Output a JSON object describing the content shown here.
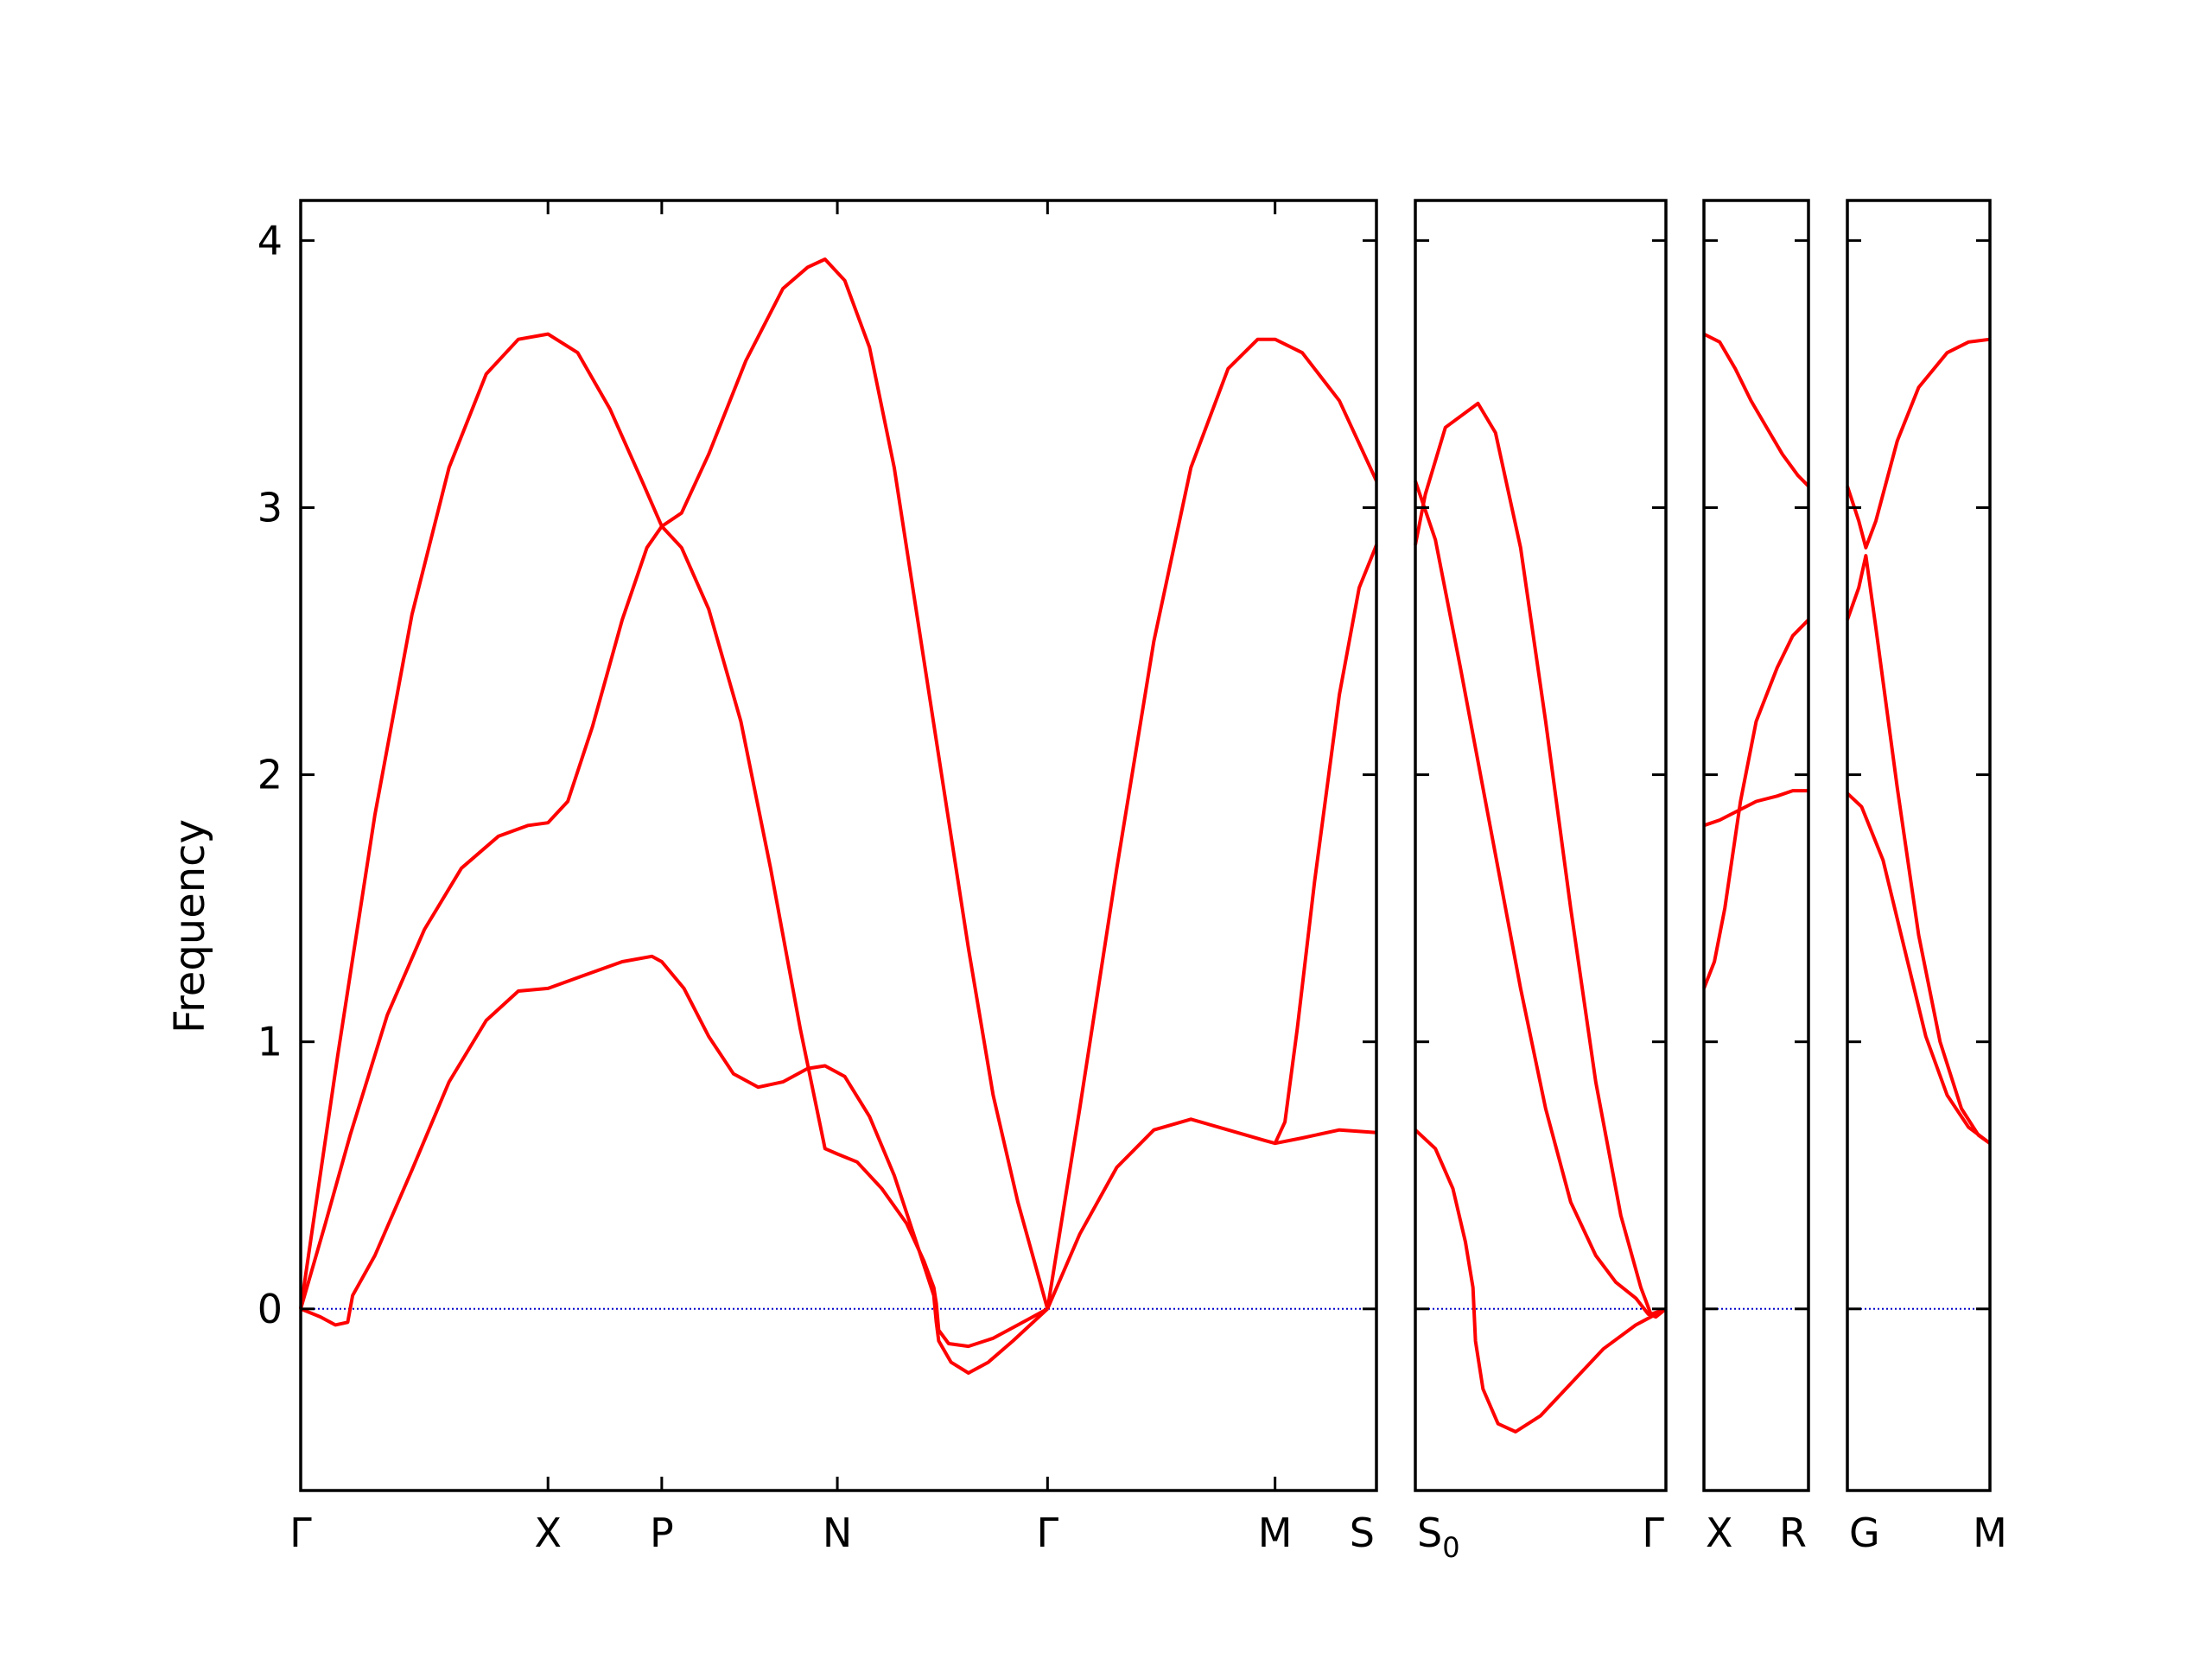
{
  "chart_data": {
    "type": "line",
    "ylabel": "Frequency",
    "yticks": [
      0,
      1,
      2,
      3,
      4
    ],
    "ylim": [
      -0.68,
      4.15
    ],
    "colors": {
      "bands": "#ff0000",
      "zero_line": "#0000cc",
      "frame": "#000000"
    },
    "zero_line_style": "dotted",
    "panels": [
      {
        "labels": [
          {
            "text": "Γ",
            "x": 0
          },
          {
            "text": "X",
            "x": 1.0
          },
          {
            "text": "P",
            "x": 1.46
          },
          {
            "text": "N",
            "x": 2.17
          },
          {
            "text": "Γ",
            "x": 3.02
          },
          {
            "text": "M",
            "x": 3.94
          },
          {
            "text": "S",
            "x": 4.35
          }
        ],
        "xlim": [
          0,
          4.35
        ],
        "series": [
          {
            "points": [
              [
                0,
                0
              ],
              [
                0.15,
                0.95
              ],
              [
                0.3,
                1.85
              ],
              [
                0.45,
                2.6
              ],
              [
                0.6,
                3.15
              ],
              [
                0.75,
                3.5
              ],
              [
                0.88,
                3.63
              ],
              [
                1.0,
                3.65
              ],
              [
                1.12,
                3.58
              ],
              [
                1.25,
                3.37
              ],
              [
                1.38,
                3.1
              ],
              [
                1.46,
                2.93
              ],
              [
                1.54,
                2.85
              ],
              [
                1.65,
                2.62
              ],
              [
                1.78,
                2.2
              ],
              [
                1.9,
                1.65
              ],
              [
                2.02,
                1.05
              ],
              [
                2.12,
                0.6
              ],
              [
                2.17,
                0.58
              ],
              [
                2.25,
                0.55
              ],
              [
                2.35,
                0.45
              ],
              [
                2.45,
                0.32
              ],
              [
                2.52,
                0.18
              ],
              [
                2.56,
                0.08
              ],
              [
                2.57,
                0.02
              ],
              [
                2.58,
                -0.08
              ],
              [
                2.62,
                -0.13
              ],
              [
                2.7,
                -0.14
              ],
              [
                2.8,
                -0.11
              ],
              [
                2.9,
                -0.06
              ],
              [
                3.02,
                0
              ]
            ]
          },
          {
            "points": [
              [
                0,
                0
              ],
              [
                0.1,
                0.32
              ],
              [
                0.2,
                0.65
              ],
              [
                0.35,
                1.1
              ],
              [
                0.5,
                1.42
              ],
              [
                0.65,
                1.65
              ],
              [
                0.8,
                1.77
              ],
              [
                0.92,
                1.81
              ],
              [
                1.0,
                1.82
              ],
              [
                1.08,
                1.9
              ],
              [
                1.18,
                2.18
              ],
              [
                1.3,
                2.58
              ],
              [
                1.4,
                2.85
              ],
              [
                1.46,
                2.93
              ],
              [
                1.54,
                2.98
              ],
              [
                1.65,
                3.2
              ],
              [
                1.8,
                3.55
              ],
              [
                1.95,
                3.82
              ],
              [
                2.05,
                3.9
              ],
              [
                2.12,
                3.93
              ],
              [
                2.2,
                3.85
              ],
              [
                2.3,
                3.6
              ],
              [
                2.4,
                3.15
              ],
              [
                2.5,
                2.55
              ],
              [
                2.6,
                1.95
              ],
              [
                2.7,
                1.35
              ],
              [
                2.8,
                0.8
              ],
              [
                2.9,
                0.4
              ],
              [
                3.02,
                0
              ]
            ]
          },
          {
            "points": [
              [
                0,
                0
              ],
              [
                0.08,
                -0.03
              ],
              [
                0.14,
                -0.06
              ],
              [
                0.19,
                -0.05
              ],
              [
                0.21,
                0.05
              ],
              [
                0.3,
                0.2
              ],
              [
                0.45,
                0.52
              ],
              [
                0.6,
                0.85
              ],
              [
                0.75,
                1.08
              ],
              [
                0.88,
                1.19
              ],
              [
                1.0,
                1.2
              ],
              [
                1.15,
                1.25
              ],
              [
                1.3,
                1.3
              ],
              [
                1.42,
                1.32
              ],
              [
                1.46,
                1.3
              ],
              [
                1.55,
                1.2
              ],
              [
                1.65,
                1.02
              ],
              [
                1.75,
                0.88
              ],
              [
                1.85,
                0.83
              ],
              [
                1.95,
                0.85
              ],
              [
                2.05,
                0.9
              ],
              [
                2.12,
                0.91
              ],
              [
                2.2,
                0.87
              ],
              [
                2.3,
                0.72
              ],
              [
                2.4,
                0.5
              ],
              [
                2.5,
                0.22
              ],
              [
                2.56,
                0.05
              ],
              [
                2.57,
                -0.05
              ],
              [
                2.58,
                -0.12
              ],
              [
                2.63,
                -0.2
              ],
              [
                2.7,
                -0.24
              ],
              [
                2.78,
                -0.2
              ],
              [
                2.88,
                -0.12
              ],
              [
                3.02,
                0
              ]
            ]
          },
          {
            "points": [
              [
                3.02,
                0
              ],
              [
                3.15,
                0.28
              ],
              [
                3.3,
                0.53
              ],
              [
                3.45,
                0.67
              ],
              [
                3.6,
                0.71
              ],
              [
                3.75,
                0.67
              ],
              [
                3.9,
                0.63
              ],
              [
                3.94,
                0.62
              ],
              [
                4.05,
                0.64
              ],
              [
                4.2,
                0.67
              ],
              [
                4.35,
                0.66
              ]
            ]
          },
          {
            "points": [
              [
                3.02,
                0
              ],
              [
                3.15,
                0.75
              ],
              [
                3.3,
                1.65
              ],
              [
                3.45,
                2.5
              ],
              [
                3.6,
                3.15
              ],
              [
                3.75,
                3.52
              ],
              [
                3.87,
                3.63
              ],
              [
                3.94,
                3.63
              ],
              [
                4.05,
                3.58
              ],
              [
                4.2,
                3.4
              ],
              [
                4.35,
                3.1
              ]
            ]
          },
          {
            "points": [
              [
                3.94,
                0.62
              ],
              [
                3.98,
                0.7
              ],
              [
                4.03,
                1.05
              ],
              [
                4.1,
                1.6
              ],
              [
                4.2,
                2.3
              ],
              [
                4.28,
                2.7
              ],
              [
                4.35,
                2.86
              ]
            ]
          }
        ]
      },
      {
        "labels": [
          {
            "text": "S",
            "sub": "0",
            "x": 0
          },
          {
            "text": "Γ",
            "x": 1.0
          }
        ],
        "xlim": [
          0,
          1.0
        ],
        "series": [
          {
            "points": [
              [
                0,
                0.67
              ],
              [
                0.08,
                0.6
              ],
              [
                0.15,
                0.45
              ],
              [
                0.2,
                0.25
              ],
              [
                0.23,
                0.08
              ],
              [
                0.24,
                -0.12
              ],
              [
                0.27,
                -0.3
              ],
              [
                0.33,
                -0.43
              ],
              [
                0.4,
                -0.46
              ],
              [
                0.5,
                -0.4
              ],
              [
                0.62,
                -0.28
              ],
              [
                0.75,
                -0.15
              ],
              [
                0.88,
                -0.06
              ],
              [
                1.0,
                0
              ]
            ]
          },
          {
            "points": [
              [
                0,
                2.86
              ],
              [
                0.04,
                3.05
              ],
              [
                0.12,
                3.3
              ],
              [
                0.25,
                3.39
              ],
              [
                0.32,
                3.28
              ],
              [
                0.42,
                2.85
              ],
              [
                0.52,
                2.2
              ],
              [
                0.62,
                1.5
              ],
              [
                0.72,
                0.85
              ],
              [
                0.82,
                0.35
              ],
              [
                0.9,
                0.08
              ],
              [
                0.94,
                -0.02
              ],
              [
                0.97,
                -0.01
              ],
              [
                1.0,
                0
              ]
            ]
          },
          {
            "points": [
              [
                0,
                3.1
              ],
              [
                0.08,
                2.88
              ],
              [
                0.18,
                2.4
              ],
              [
                0.3,
                1.8
              ],
              [
                0.42,
                1.2
              ],
              [
                0.52,
                0.75
              ],
              [
                0.62,
                0.4
              ],
              [
                0.72,
                0.2
              ],
              [
                0.8,
                0.1
              ],
              [
                0.88,
                0.04
              ],
              [
                0.93,
                -0.02
              ],
              [
                0.96,
                -0.03
              ],
              [
                1.0,
                0
              ]
            ]
          }
        ]
      },
      {
        "labels": [
          {
            "text": "X",
            "x": 0
          },
          {
            "text": "R",
            "x": 1.0
          }
        ],
        "xlim": [
          0,
          1.0
        ],
        "series": [
          {
            "points": [
              [
                0,
                3.65
              ],
              [
                0.15,
                3.62
              ],
              [
                0.3,
                3.52
              ],
              [
                0.45,
                3.4
              ],
              [
                0.6,
                3.3
              ],
              [
                0.75,
                3.2
              ],
              [
                0.9,
                3.12
              ],
              [
                1.0,
                3.08
              ]
            ]
          },
          {
            "points": [
              [
                0,
                1.2
              ],
              [
                0.1,
                1.3
              ],
              [
                0.2,
                1.5
              ],
              [
                0.35,
                1.9
              ],
              [
                0.5,
                2.2
              ],
              [
                0.7,
                2.4
              ],
              [
                0.85,
                2.52
              ],
              [
                1.0,
                2.58
              ]
            ]
          },
          {
            "points": [
              [
                0,
                1.81
              ],
              [
                0.15,
                1.83
              ],
              [
                0.3,
                1.86
              ],
              [
                0.5,
                1.9
              ],
              [
                0.7,
                1.92
              ],
              [
                0.85,
                1.94
              ],
              [
                1.0,
                1.94
              ]
            ]
          }
        ]
      },
      {
        "labels": [
          {
            "text": "G",
            "x": 0
          },
          {
            "text": "M",
            "x": 1.0
          }
        ],
        "xlim": [
          0,
          1.0
        ],
        "series": [
          {
            "points": [
              [
                0,
                3.08
              ],
              [
                0.08,
                2.95
              ],
              [
                0.13,
                2.85
              ],
              [
                0.2,
                2.95
              ],
              [
                0.35,
                3.25
              ],
              [
                0.5,
                3.45
              ],
              [
                0.7,
                3.58
              ],
              [
                0.85,
                3.62
              ],
              [
                1.0,
                3.63
              ]
            ]
          },
          {
            "points": [
              [
                0,
                2.58
              ],
              [
                0.08,
                2.7
              ],
              [
                0.13,
                2.82
              ],
              [
                0.2,
                2.55
              ],
              [
                0.35,
                1.95
              ],
              [
                0.5,
                1.4
              ],
              [
                0.65,
                1.0
              ],
              [
                0.8,
                0.75
              ],
              [
                0.92,
                0.65
              ],
              [
                1.0,
                0.62
              ]
            ]
          },
          {
            "points": [
              [
                0,
                1.93
              ],
              [
                0.1,
                1.88
              ],
              [
                0.25,
                1.68
              ],
              [
                0.4,
                1.35
              ],
              [
                0.55,
                1.02
              ],
              [
                0.7,
                0.8
              ],
              [
                0.85,
                0.68
              ],
              [
                1.0,
                0.62
              ]
            ]
          }
        ]
      }
    ]
  }
}
